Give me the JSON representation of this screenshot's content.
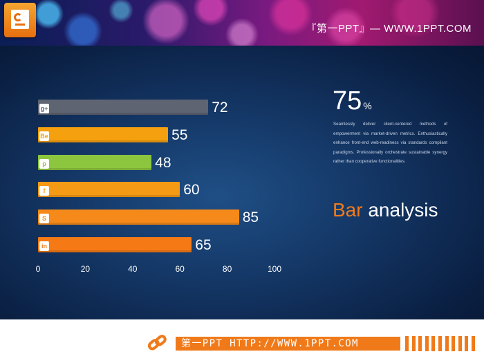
{
  "header": {
    "title": "『第一PPT』— WWW.1PPT.COM"
  },
  "chart_data": {
    "type": "bar",
    "orientation": "horizontal",
    "categories": [
      "google-plus",
      "behance",
      "pinterest",
      "facebook",
      "skype",
      "linkedin"
    ],
    "icon_labels": [
      "g+",
      "Be",
      "p",
      "f",
      "S",
      "in"
    ],
    "values": [
      72,
      55,
      48,
      60,
      85,
      65
    ],
    "colors": [
      "#5f6472",
      "#f5a00f",
      "#8cc63f",
      "#f59a15",
      "#f58a1a",
      "#f57a16"
    ],
    "xlim": [
      0,
      100
    ],
    "x_ticks": [
      0,
      20,
      40,
      60,
      80,
      100
    ],
    "grid": false,
    "title": "",
    "xlabel": "",
    "ylabel": ""
  },
  "highlight": {
    "number": "75",
    "unit": "%",
    "description": "Seamlessly deliver client-centered methods of empowerment via market-driven metrics. Enthusiastically enhance front-end web-readiness via standards compliant paradigms. Professionally orchestrate sustainable synergy rather than cooperative functionalities."
  },
  "analysis": {
    "word1": "Bar",
    "word2": "analysis"
  },
  "footer": {
    "text": "第一PPT HTTP://WWW.1PPT.COM"
  },
  "colors": {
    "accent": "#f07a1a",
    "panel": "#143766"
  }
}
